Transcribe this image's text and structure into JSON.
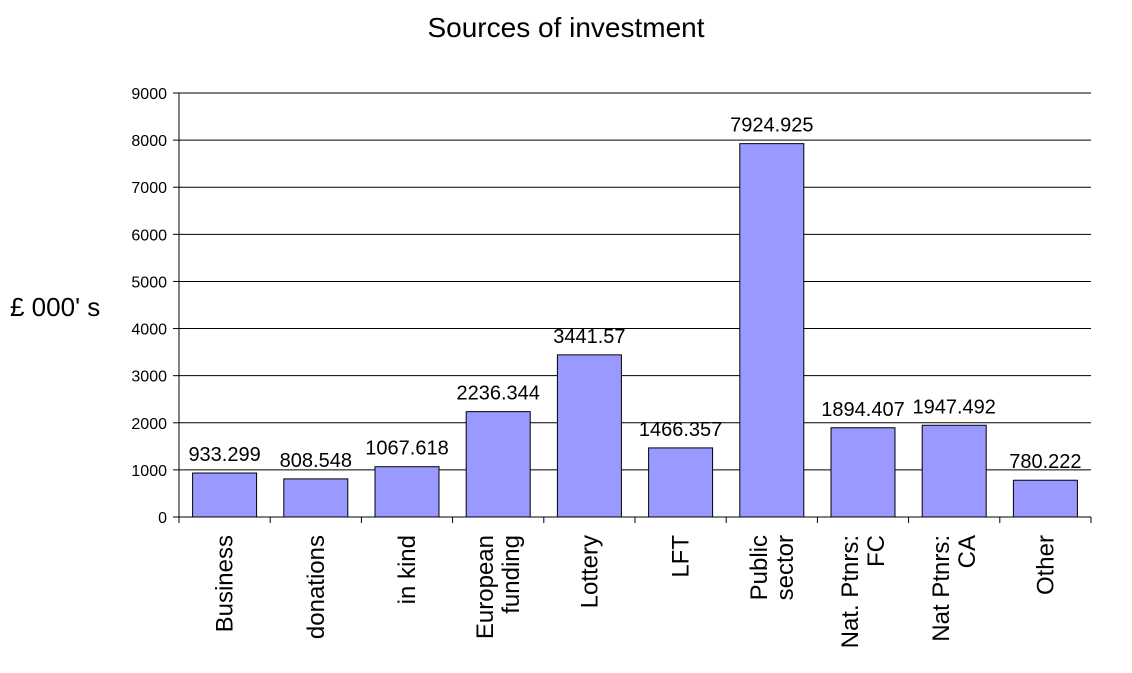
{
  "chart_data": {
    "type": "bar",
    "title": "Sources of investment",
    "ylabel": "£ 000' s",
    "xlabel": "",
    "ylim": [
      0,
      9000
    ],
    "yticks": [
      0,
      1000,
      2000,
      3000,
      4000,
      5000,
      6000,
      7000,
      8000,
      9000
    ],
    "grid": true,
    "legend": "none",
    "bar_color": "#9999ff",
    "categories": [
      [
        "Business"
      ],
      [
        "donations"
      ],
      [
        "in kind"
      ],
      [
        "European",
        "funding"
      ],
      [
        "Lottery"
      ],
      [
        "LFT"
      ],
      [
        "Public",
        "sector"
      ],
      [
        "Nat. Ptnrs:",
        "FC"
      ],
      [
        "Nat Ptnrs:",
        "CA"
      ],
      [
        "Other"
      ]
    ],
    "values": [
      933.299,
      808.548,
      1067.618,
      2236.344,
      3441.57,
      1466.357,
      7924.925,
      1894.407,
      1947.492,
      780.222
    ],
    "data_labels": [
      "933.299",
      "808.548",
      "1067.618",
      "2236.344",
      "3441.57",
      "1466.357",
      "7924.925",
      "1894.407",
      "1947.492",
      "780.222"
    ]
  }
}
